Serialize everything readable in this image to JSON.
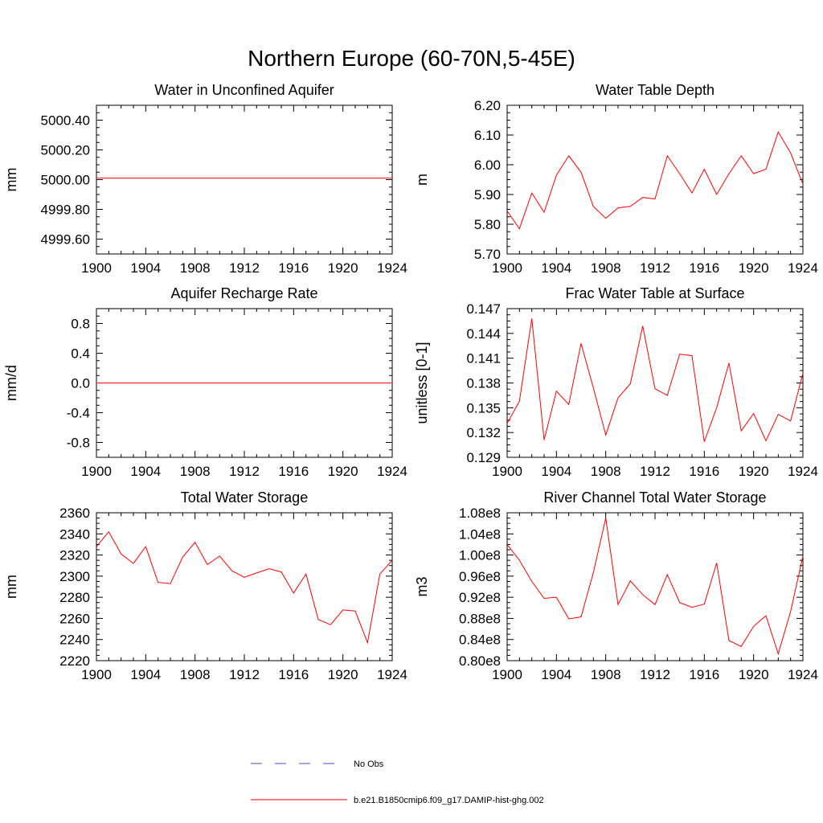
{
  "figure": {
    "title": "Northern Europe (60-70N,5-45E)"
  },
  "legend": {
    "placement": "bottom-center",
    "entries": [
      {
        "label": "No Obs",
        "color": "#4a4ad8",
        "dash": "dashed"
      },
      {
        "label": "b.e21.B1850cmip6.f09_g17.DAMIP-hist-ghg.002",
        "color": "#ff0000",
        "dash": "solid"
      }
    ]
  },
  "chart_data": [
    {
      "type": "line",
      "title": "Water in Unconfined Aquifer",
      "ylabel": "mm",
      "xlim": [
        1900,
        1924
      ],
      "ylim": [
        4999.5,
        5000.5
      ],
      "xticks": [
        "1900",
        "1904",
        "1908",
        "1912",
        "1916",
        "1920",
        "1924"
      ],
      "yticks": [
        "4999.60",
        "4999.80",
        "5000.00",
        "5000.20",
        "5000.40"
      ],
      "ytick_values": [
        4999.6,
        4999.8,
        5000.0,
        5000.2,
        5000.4
      ],
      "x": [
        1900,
        1924
      ],
      "series": [
        {
          "color": "#ff0000",
          "values": [
            5000.01,
            5000.01
          ]
        }
      ]
    },
    {
      "type": "line",
      "title": "Water Table Depth",
      "ylabel": "m",
      "xlim": [
        1900,
        1924
      ],
      "ylim": [
        5.7,
        6.2
      ],
      "xticks": [
        "1900",
        "1904",
        "1908",
        "1912",
        "1916",
        "1920",
        "1924"
      ],
      "yticks": [
        "5.70",
        "5.80",
        "5.90",
        "6.00",
        "6.10",
        "6.20"
      ],
      "ytick_values": [
        5.7,
        5.8,
        5.9,
        6.0,
        6.1,
        6.2
      ],
      "x": [
        1900,
        1901,
        1902,
        1903,
        1904,
        1905,
        1906,
        1907,
        1908,
        1909,
        1910,
        1911,
        1912,
        1913,
        1914,
        1915,
        1916,
        1917,
        1918,
        1919,
        1920,
        1921,
        1922,
        1923,
        1924
      ],
      "series": [
        {
          "color": "#ff0000",
          "values": [
            5.845,
            5.785,
            5.905,
            5.84,
            5.965,
            6.03,
            5.975,
            5.86,
            5.82,
            5.855,
            5.86,
            5.89,
            5.885,
            6.03,
            5.97,
            5.905,
            5.985,
            5.9,
            5.97,
            6.03,
            5.97,
            5.985,
            6.11,
            6.04,
            5.935
          ]
        }
      ]
    },
    {
      "type": "line",
      "title": "Aquifer Recharge Rate",
      "ylabel": "mm/d",
      "xlim": [
        1900,
        1924
      ],
      "ylim": [
        -1.0,
        1.0
      ],
      "xticks": [
        "1900",
        "1904",
        "1908",
        "1912",
        "1916",
        "1920",
        "1924"
      ],
      "yticks": [
        "-0.8",
        "-0.4",
        "0.0",
        "0.4",
        "0.8"
      ],
      "ytick_values": [
        -0.8,
        -0.4,
        0.0,
        0.4,
        0.8
      ],
      "x": [
        1900,
        1924
      ],
      "series": [
        {
          "color": "#ff0000",
          "values": [
            0.0,
            0.0
          ]
        }
      ]
    },
    {
      "type": "line",
      "title": "Frac Water Table at Surface",
      "ylabel": "unitless [0-1]",
      "xlim": [
        1900,
        1924
      ],
      "ylim": [
        0.129,
        0.147
      ],
      "xticks": [
        "1900",
        "1904",
        "1908",
        "1912",
        "1916",
        "1920",
        "1924"
      ],
      "yticks": [
        "0.129",
        "0.132",
        "0.135",
        "0.138",
        "0.141",
        "0.144",
        "0.147"
      ],
      "ytick_values": [
        0.129,
        0.132,
        0.135,
        0.138,
        0.141,
        0.144,
        0.147
      ],
      "x": [
        1900,
        1901,
        1902,
        1903,
        1904,
        1905,
        1906,
        1907,
        1908,
        1909,
        1910,
        1911,
        1912,
        1913,
        1914,
        1915,
        1916,
        1917,
        1918,
        1919,
        1920,
        1921,
        1922,
        1923,
        1924
      ],
      "series": [
        {
          "color": "#ff0000",
          "values": [
            0.1331,
            0.1358,
            0.1458,
            0.1311,
            0.137,
            0.1354,
            0.1428,
            0.1374,
            0.1317,
            0.1362,
            0.1379,
            0.1449,
            0.1373,
            0.1365,
            0.1415,
            0.1413,
            0.1309,
            0.135,
            0.1404,
            0.1322,
            0.1343,
            0.131,
            0.1342,
            0.1334,
            0.1392
          ]
        }
      ]
    },
    {
      "type": "line",
      "title": "Total Water Storage",
      "ylabel": "mm",
      "xlim": [
        1900,
        1924
      ],
      "ylim": [
        2220,
        2360
      ],
      "xticks": [
        "1900",
        "1904",
        "1908",
        "1912",
        "1916",
        "1920",
        "1924"
      ],
      "yticks": [
        "2220",
        "2240",
        "2260",
        "2280",
        "2300",
        "2320",
        "2340",
        "2360"
      ],
      "ytick_values": [
        2220,
        2240,
        2260,
        2280,
        2300,
        2320,
        2340,
        2360
      ],
      "x": [
        1900,
        1901,
        1902,
        1903,
        1904,
        1905,
        1906,
        1907,
        1908,
        1909,
        1910,
        1911,
        1912,
        1913,
        1914,
        1915,
        1916,
        1917,
        1918,
        1919,
        1920,
        1921,
        1922,
        1923,
        1924
      ],
      "series": [
        {
          "color": "#ff0000",
          "values": [
            2328,
            2342,
            2321,
            2312,
            2328,
            2294,
            2293,
            2318,
            2332,
            2311,
            2319,
            2305,
            2299,
            2303,
            2307,
            2304,
            2284,
            2302,
            2259,
            2254,
            2268,
            2267,
            2237,
            2302,
            2315
          ]
        }
      ]
    },
    {
      "type": "line",
      "title": "River Channel Total Water Storage",
      "ylabel": "m3",
      "xlim": [
        1900,
        1924
      ],
      "ylim": [
        0.8,
        1.08
      ],
      "xticks": [
        "1900",
        "1904",
        "1908",
        "1912",
        "1916",
        "1920",
        "1924"
      ],
      "yticks": [
        "0.80e8",
        "0.84e8",
        "0.88e8",
        "0.92e8",
        "0.96e8",
        "1.00e8",
        "1.04e8",
        "1.08e8"
      ],
      "ytick_values": [
        0.8,
        0.84,
        0.88,
        0.92,
        0.96,
        1.0,
        1.04,
        1.08
      ],
      "x": [
        1900,
        1901,
        1902,
        1903,
        1904,
        1905,
        1906,
        1907,
        1908,
        1909,
        1910,
        1911,
        1912,
        1913,
        1914,
        1915,
        1916,
        1917,
        1918,
        1919,
        1920,
        1921,
        1922,
        1923,
        1924
      ],
      "series": [
        {
          "color": "#ff0000",
          "values": [
            1.02,
            0.99,
            0.95,
            0.918,
            0.92,
            0.879,
            0.883,
            0.967,
            1.07,
            0.906,
            0.951,
            0.925,
            0.906,
            0.963,
            0.91,
            0.901,
            0.907,
            0.985,
            0.838,
            0.827,
            0.865,
            0.885,
            0.813,
            0.893,
            0.998
          ]
        }
      ]
    }
  ]
}
